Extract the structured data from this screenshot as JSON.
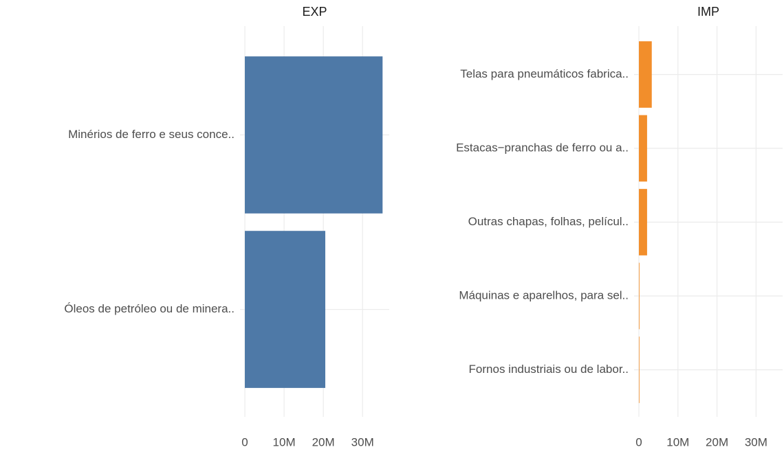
{
  "chart_data": [
    {
      "type": "hbar",
      "title": "EXP",
      "color": "#4e79a7",
      "grid": true,
      "categories": [
        "Minérios de ferro e seus conce..",
        "Óleos de petróleo ou de minera.."
      ],
      "values": [
        35100000,
        20500000
      ],
      "xlim": [
        -1230000,
        36800000
      ],
      "xticks": [
        0,
        {
          "value": 10000000,
          "label": "10M"
        },
        {
          "value": 20000000,
          "label": "20M"
        },
        {
          "value": 30000000,
          "label": "30M"
        }
      ]
    },
    {
      "type": "hbar",
      "title": "IMP",
      "color": "#f28e2b",
      "grid": true,
      "categories": [
        "Telas para pneumáticos fabrica..",
        "Estacas−pranchas de ferro ou a..",
        "Outras chapas, folhas, películ..",
        "Máquinas e aparelhos, para sel..",
        "Fornos industriais ou de labor.."
      ],
      "values": [
        3300000,
        2100000,
        2100000,
        150000,
        100000
      ],
      "xlim": [
        -1230000,
        36800000
      ],
      "xticks": [
        0,
        {
          "value": 10000000,
          "label": "10M"
        },
        {
          "value": 20000000,
          "label": "20M"
        },
        {
          "value": 30000000,
          "label": "30M"
        }
      ]
    }
  ]
}
